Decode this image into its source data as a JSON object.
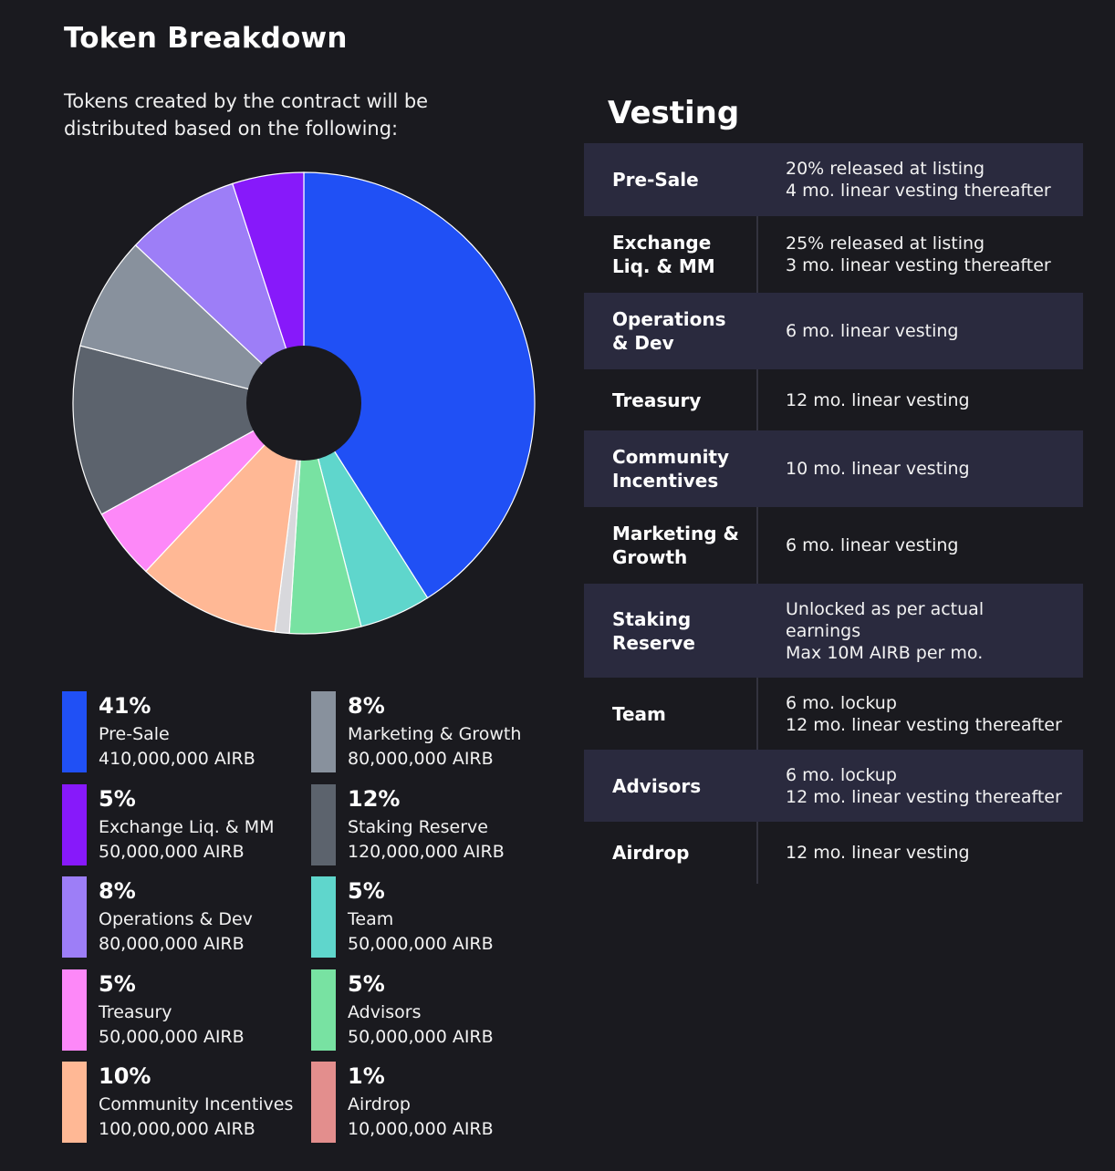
{
  "header": {
    "title": "Token Breakdown",
    "subtitle": "Tokens created by the contract will be distributed based on the following:"
  },
  "chart_data": {
    "type": "pie",
    "title": "Token Breakdown",
    "slices": [
      {
        "label": "Pre-Sale",
        "percent_label": "41%",
        "amount": "410,000,000 AIRB",
        "value": 410000000,
        "color": "#2050f5"
      },
      {
        "label": "Team",
        "percent_label": "5%",
        "amount": "50,000,000 AIRB",
        "value": 50000000,
        "color": "#5fd6cc"
      },
      {
        "label": "Advisors",
        "percent_label": "5%",
        "amount": "50,000,000 AIRB",
        "value": 50000000,
        "color": "#78e2a2"
      },
      {
        "label": "Airdrop",
        "percent_label": "1%",
        "amount": "10,000,000 AIRB",
        "value": 10000000,
        "color": "#d8d8dc"
      },
      {
        "label": "Community Incentives",
        "percent_label": "10%",
        "amount": "100,000,000 AIRB",
        "value": 100000000,
        "color": "#ffb895"
      },
      {
        "label": "Treasury",
        "percent_label": "5%",
        "amount": "50,000,000 AIRB",
        "value": 50000000,
        "color": "#fd88f8"
      },
      {
        "label": "Staking Reserve",
        "percent_label": "12%",
        "amount": "120,000,000 AIRB",
        "value": 120000000,
        "color": "#5c636d"
      },
      {
        "label": "Marketing & Growth",
        "percent_label": "8%",
        "amount": "80,000,000 AIRB",
        "value": 80000000,
        "color": "#88919d"
      },
      {
        "label": "Operations & Dev",
        "percent_label": "8%",
        "amount": "80,000,000 AIRB",
        "value": 80000000,
        "color": "#9d7ef7"
      },
      {
        "label": "Exchange Liq. & MM",
        "percent_label": "5%",
        "amount": "50,000,000 AIRB",
        "value": 50000000,
        "color": "#8719fa"
      }
    ],
    "legend_placement": "bottom"
  },
  "legend": [
    {
      "pct": "41%",
      "name": "Pre-Sale",
      "amount": "410,000,000 AIRB",
      "color": "#2050f5"
    },
    {
      "pct": "8%",
      "name": "Marketing & Growth",
      "amount": "80,000,000 AIRB",
      "color": "#88919d"
    },
    {
      "pct": "5%",
      "name": "Exchange Liq. & MM",
      "amount": "50,000,000 AIRB",
      "color": "#8719fa"
    },
    {
      "pct": "12%",
      "name": "Staking Reserve",
      "amount": "120,000,000 AIRB",
      "color": "#5c636d"
    },
    {
      "pct": "8%",
      "name": "Operations & Dev",
      "amount": "80,000,000 AIRB",
      "color": "#9d7ef7"
    },
    {
      "pct": "5%",
      "name": "Team",
      "amount": "50,000,000 AIRB",
      "color": "#5fd6cc"
    },
    {
      "pct": "5%",
      "name": "Treasury",
      "amount": "50,000,000 AIRB",
      "color": "#fd88f8"
    },
    {
      "pct": "5%",
      "name": "Advisors",
      "amount": "50,000,000 AIRB",
      "color": "#78e2a2"
    },
    {
      "pct": "10%",
      "name": "Community Incentives",
      "amount": "100,000,000 AIRB",
      "color": "#ffb895"
    },
    {
      "pct": "1%",
      "name": "Airdrop",
      "amount": "10,000,000 AIRB",
      "color": "#e38e8d"
    }
  ],
  "vesting": {
    "title": "Vesting",
    "rows": [
      {
        "label_lines": [
          "Pre-Sale"
        ],
        "desc_lines": [
          "20% released at listing",
          "4 mo. linear vesting thereafter"
        ]
      },
      {
        "label_lines": [
          "Exchange",
          "Liq. & MM"
        ],
        "desc_lines": [
          "25% released at listing",
          "3 mo. linear vesting thereafter"
        ]
      },
      {
        "label_lines": [
          "Operations",
          "& Dev"
        ],
        "desc_lines": [
          "6 mo. linear vesting"
        ]
      },
      {
        "label_lines": [
          "Treasury"
        ],
        "desc_lines": [
          "12 mo. linear vesting"
        ]
      },
      {
        "label_lines": [
          "Community",
          "Incentives"
        ],
        "desc_lines": [
          "10 mo. linear vesting"
        ]
      },
      {
        "label_lines": [
          "Marketing &",
          "Growth"
        ],
        "desc_lines": [
          "6 mo. linear vesting"
        ]
      },
      {
        "label_lines": [
          "Staking",
          "Reserve"
        ],
        "desc_lines": [
          "Unlocked as per actual",
          "earnings",
          "Max 10M AIRB per mo."
        ]
      },
      {
        "label_lines": [
          "Team"
        ],
        "desc_lines": [
          "6 mo. lockup",
          "12 mo. linear vesting thereafter"
        ]
      },
      {
        "label_lines": [
          "Advisors"
        ],
        "desc_lines": [
          "6 mo. lockup",
          "12 mo. linear vesting thereafter"
        ]
      },
      {
        "label_lines": [
          "Airdrop"
        ],
        "desc_lines": [
          "12 mo. linear vesting"
        ]
      }
    ]
  }
}
